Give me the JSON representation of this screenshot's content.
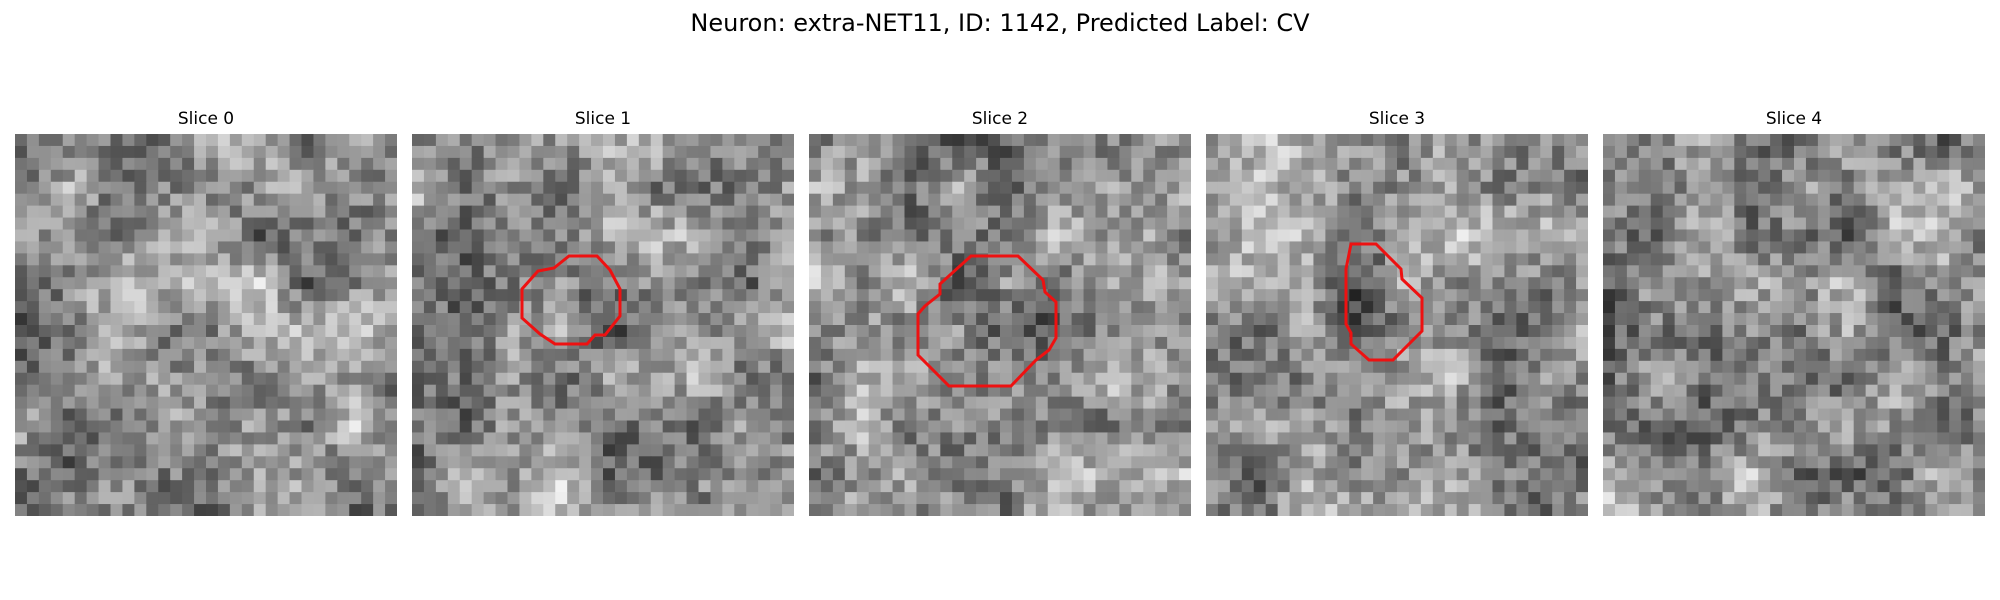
{
  "figure": {
    "title": "Neuron: extra-NET11, ID: 1142, Predicted Label: CV"
  },
  "colors": {
    "contour": "#ee1111",
    "background": "#ffffff"
  },
  "slices": [
    {
      "title": "Slice 0",
      "seed": 11,
      "has_contour": false
    },
    {
      "title": "Slice 1",
      "seed": 23,
      "has_contour": true
    },
    {
      "title": "Slice 2",
      "seed": 37,
      "has_contour": true
    },
    {
      "title": "Slice 3",
      "seed": 51,
      "has_contour": true
    },
    {
      "title": "Slice 4",
      "seed": 67,
      "has_contour": false
    }
  ]
}
